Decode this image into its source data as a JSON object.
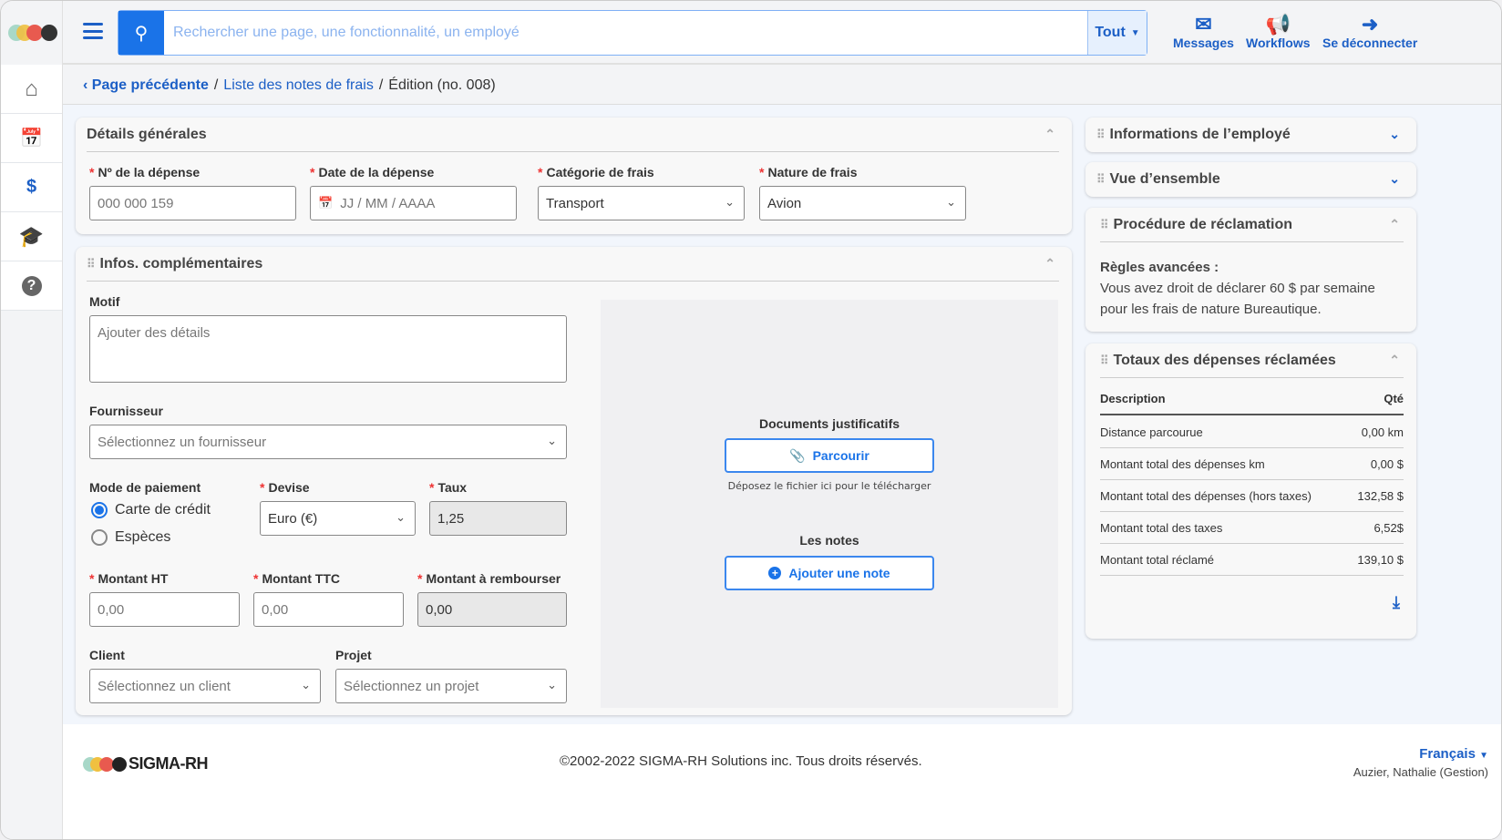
{
  "brand": {
    "name": "SIGMA-RH",
    "colors": [
      "#a8d8c8",
      "#f0c040",
      "#e85a4f",
      "#333333"
    ],
    "accent": "#1a73e8"
  },
  "sidebar": {
    "items": [
      {
        "icon": "home-icon"
      },
      {
        "icon": "calendar-clock-icon"
      },
      {
        "icon": "expense-document-icon"
      },
      {
        "icon": "graduation-cap-icon"
      },
      {
        "icon": "help-icon"
      }
    ]
  },
  "topbar": {
    "search_placeholder": "Rechercher une page, une fonctionnalité, un employé",
    "scope": "Tout",
    "messages": "Messages",
    "workflows": "Workflows",
    "logout": "Se déconnecter"
  },
  "breadcrumb": {
    "back": "Page précédente",
    "list": "Liste des notes de frais",
    "current": "Édition (no. 008)",
    "sep": "/"
  },
  "general": {
    "title": "Détails générales",
    "no_label": "Nº de la dépense",
    "no_value": "000 000 159",
    "date_label": "Date de la dépense",
    "date_placeholder": "JJ / MM / AAAA",
    "cat_label": "Catégorie de frais",
    "cat_value": "Transport",
    "nature_label": "Nature de frais",
    "nature_value": "Avion"
  },
  "extra": {
    "title": "Infos. complémentaires",
    "motif_label": "Motif",
    "motif_placeholder": "Ajouter des détails",
    "supplier_label": "Fournisseur",
    "supplier_placeholder": "Sélectionnez un fournisseur",
    "payment_label": "Mode de paiement",
    "payment_options": [
      "Carte de crédit",
      "Espèces"
    ],
    "currency_label": "Devise",
    "currency_value": "Euro (€)",
    "rate_label": "Taux",
    "rate_value": "1,25",
    "ht_label": "Montant HT",
    "ht_value": "0,00",
    "ttc_label": "Montant TTC",
    "ttc_value": "0,00",
    "refund_label": "Montant à rembourser",
    "refund_value": "0,00",
    "client_label": "Client",
    "client_placeholder": "Sélectionnez un client",
    "project_label": "Projet",
    "project_placeholder": "Sélectionnez un projet",
    "docs_title": "Documents justificatifs",
    "browse": "Parcourir",
    "drop_hint": "Déposez le fichier ici pour le télécharger",
    "notes_title": "Les notes",
    "add_note": "Ajouter une note"
  },
  "right": {
    "employee": "Informations de l’employé",
    "overview": "Vue d’ensemble",
    "procedure": {
      "title": "Procédure de réclamation",
      "rules_title": "Règles avancées :",
      "rules_text": "Vous avez droit de déclarer 60 $ par semaine pour les frais de nature Bureautique."
    },
    "totals": {
      "title": "Totaux des dépenses réclamées",
      "col_desc": "Description",
      "col_qty": "Qté",
      "rows": [
        {
          "d": "Distance parcourue",
          "v": "0,00 km"
        },
        {
          "d": "Montant total des dépenses km",
          "v": "0,00 $"
        },
        {
          "d": "Montant total des dépenses (hors taxes)",
          "v": "132,58 $"
        },
        {
          "d": "Montant total des taxes",
          "v": "6,52$"
        },
        {
          "d": "Montant total réclamé",
          "v": "139,10 $"
        }
      ]
    }
  },
  "footer": {
    "copyright": "©2002-2022 SIGMA-RH Solutions inc. Tous droits réservés.",
    "language": "Français",
    "user": "Auzier, Nathalie (Gestion)"
  }
}
